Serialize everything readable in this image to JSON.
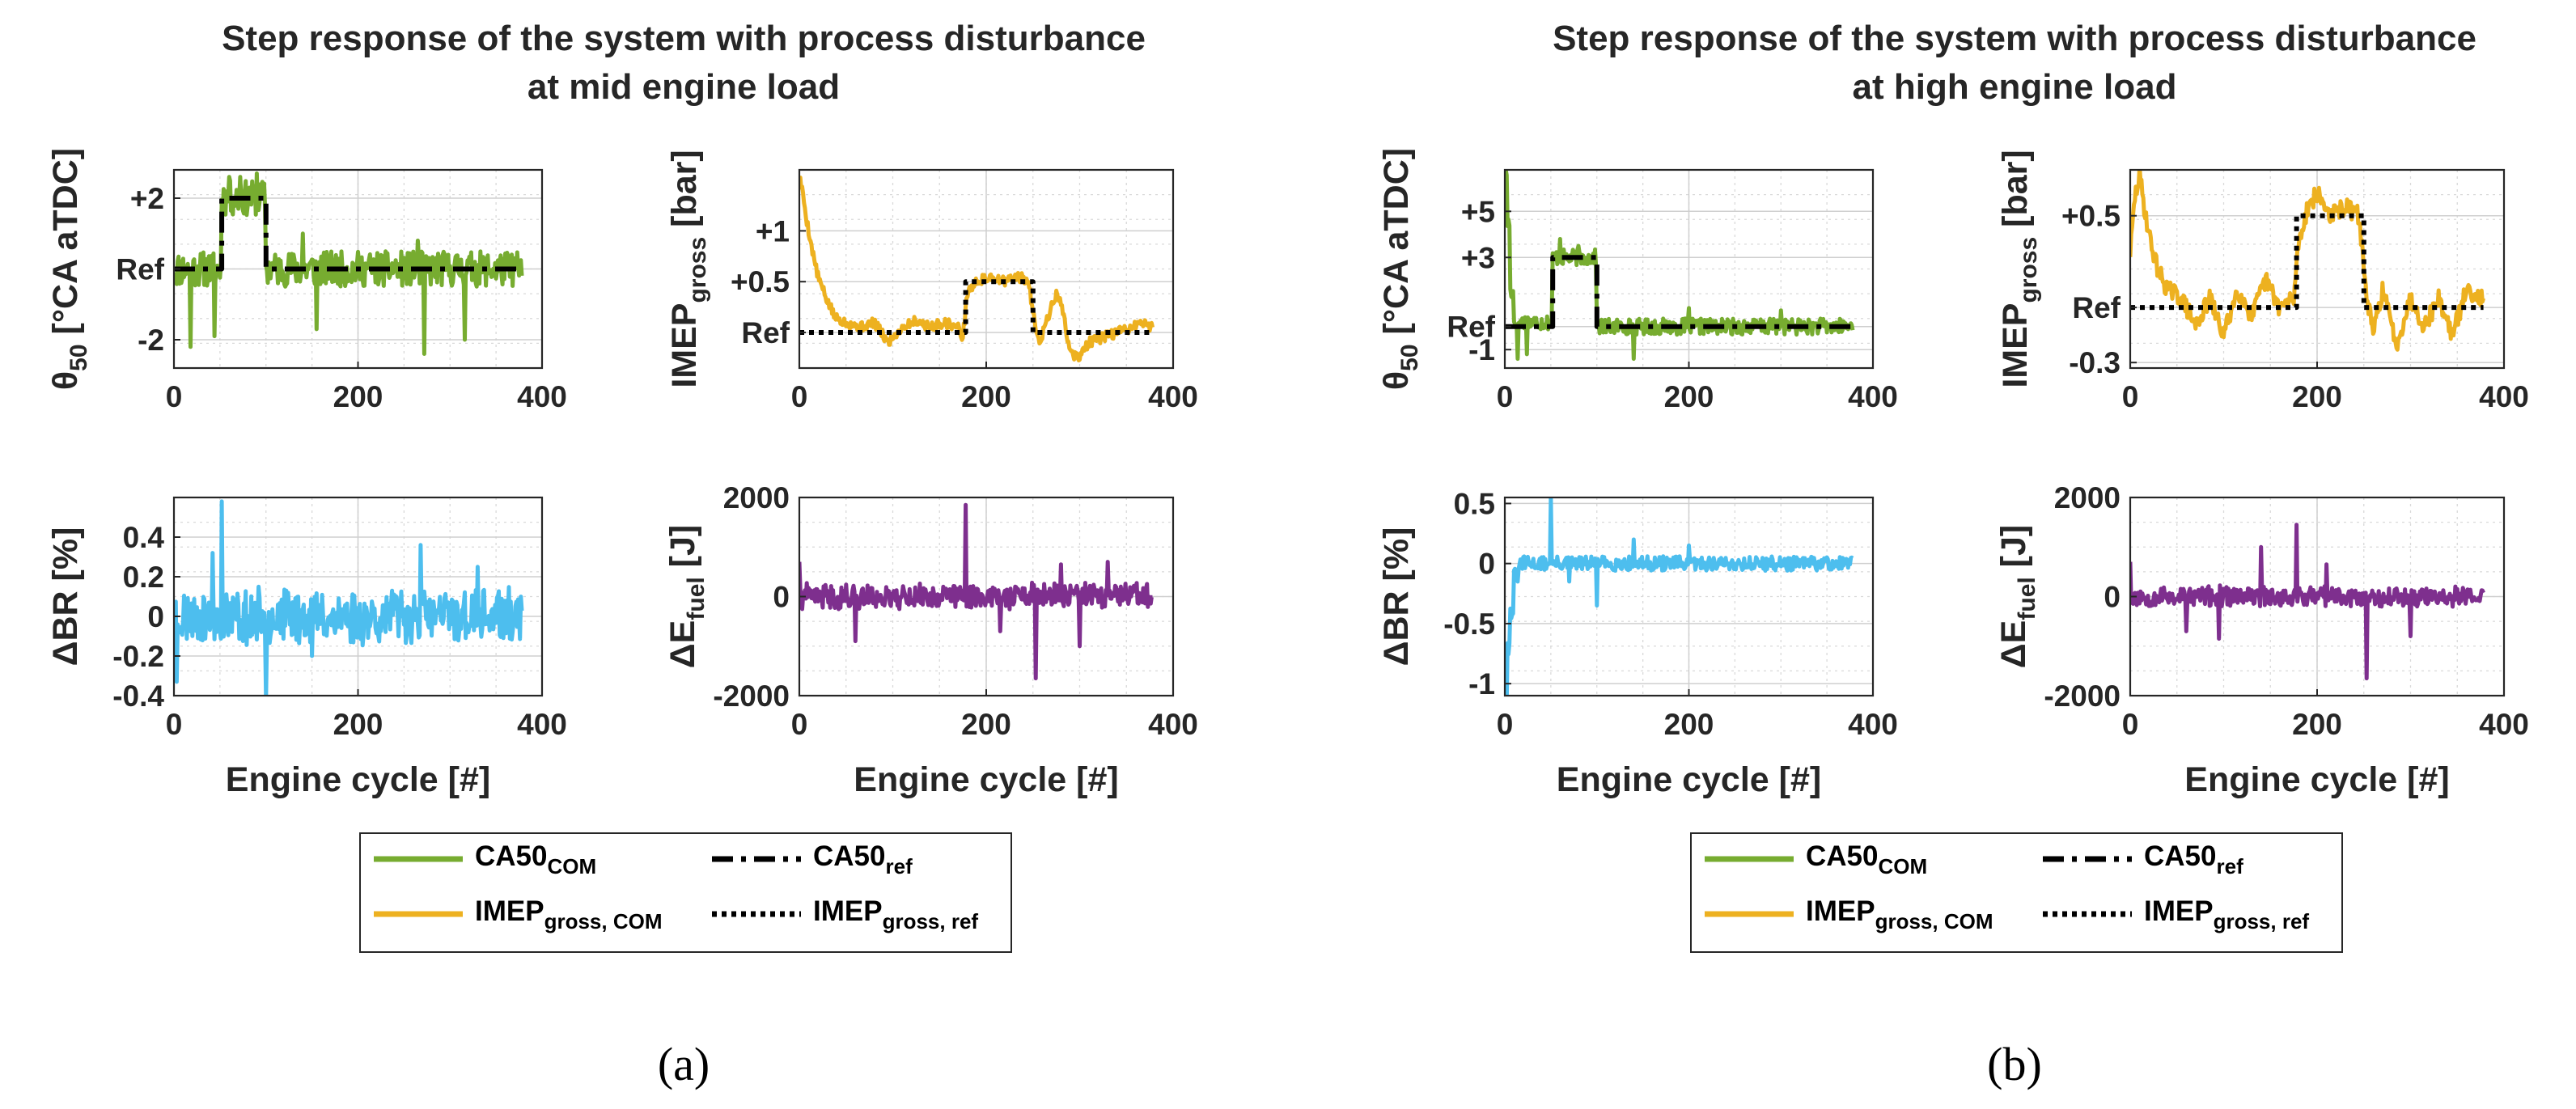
{
  "colors": {
    "ca50_com": "#77AC30",
    "imep_com": "#EDB120",
    "delta_br": "#4DBEEE",
    "delta_e_fuel": "#7E2F8E",
    "reference": "#000000",
    "axis_text": "#262626",
    "grid": "#d9d9d9"
  },
  "panels": [
    {
      "id": "a",
      "title_lines": [
        "Step response of the system with process disturbance",
        "at mid engine load"
      ],
      "caption": "(a)",
      "legend": [
        {
          "base": "CA50",
          "sub": "COM",
          "style": "solid",
          "color_key": "ca50_com"
        },
        {
          "base": "CA50",
          "sub": "ref",
          "style": "dashdot",
          "color_key": "reference"
        },
        {
          "base": "IMEP",
          "sub": "gross, COM",
          "style": "solid",
          "color_key": "imep_com"
        },
        {
          "base": "IMEP",
          "sub": "gross, ref",
          "style": "dotted",
          "color_key": "reference"
        }
      ]
    },
    {
      "id": "b",
      "title_lines": [
        "Step response of the system with process disturbance",
        "at high engine load"
      ],
      "caption": "(b)",
      "legend": [
        {
          "base": "CA50",
          "sub": "COM",
          "style": "solid",
          "color_key": "ca50_com"
        },
        {
          "base": "CA50",
          "sub": "ref",
          "style": "dashdot",
          "color_key": "reference"
        },
        {
          "base": "IMEP",
          "sub": "gross, COM",
          "style": "solid",
          "color_key": "imep_com"
        },
        {
          "base": "IMEP",
          "sub": "gross, ref",
          "style": "dotted",
          "color_key": "reference"
        }
      ]
    }
  ],
  "chart_data": [
    {
      "id": "a-ca50",
      "panel": "a",
      "type": "line",
      "ylabel": {
        "base": "θ",
        "sub": "50",
        "rest": " [°CA aTDC]"
      },
      "xlabel": "",
      "xlim": [
        0,
        400
      ],
      "ylim": [
        -2.8,
        2.8
      ],
      "xticks": [
        0,
        200,
        400
      ],
      "xtick_labels": [
        "0",
        "200",
        "400"
      ],
      "yticks": [
        -2,
        0,
        2
      ],
      "ytick_labels": [
        "-2",
        "Ref",
        "+2"
      ],
      "grid": true,
      "series": [
        {
          "name": "CA50_COM",
          "color_key": "ca50_com",
          "style": "solid",
          "kind": "noisy_step",
          "noise_amp": 0.5,
          "seed": 11,
          "n": 378,
          "steps": [
            [
              0,
              0
            ],
            [
              52,
              2
            ],
            [
              100,
              0
            ],
            [
              378,
              0
            ]
          ],
          "spikes": [
            [
              60,
              2.6
            ],
            [
              72,
              2.6
            ],
            [
              90,
              2.7
            ],
            [
              18,
              -2.2
            ],
            [
              44,
              -1.9
            ],
            [
              155,
              -1.7
            ],
            [
              272,
              -2.4
            ],
            [
              316,
              -2.0
            ],
            [
              140,
              1.0
            ],
            [
              265,
              0.8
            ]
          ]
        },
        {
          "name": "CA50_ref",
          "color_key": "reference",
          "style": "dashdot",
          "kind": "steps",
          "steps": [
            [
              0,
              0
            ],
            [
              52,
              0
            ],
            [
              52,
              2
            ],
            [
              100,
              2
            ],
            [
              100,
              0
            ],
            [
              378,
              0
            ]
          ]
        }
      ]
    },
    {
      "id": "a-imep",
      "panel": "a",
      "type": "line",
      "ylabel": {
        "base": "IMEP",
        "sub": "gross",
        "rest": " [bar]"
      },
      "xlabel": "",
      "xlim": [
        0,
        400
      ],
      "ylim": [
        -0.35,
        1.6
      ],
      "xticks": [
        0,
        200,
        400
      ],
      "xtick_labels": [
        "0",
        "200",
        "400"
      ],
      "yticks": [
        0,
        0.5,
        1
      ],
      "ytick_labels": [
        "Ref",
        "+0.5",
        "+1"
      ],
      "grid": true,
      "series": [
        {
          "name": "IMEP_gross_COM",
          "color_key": "imep_com",
          "style": "solid",
          "kind": "points",
          "points": [
            [
              0,
              1.55
            ],
            [
              4,
              1.35
            ],
            [
              8,
              1.1
            ],
            [
              14,
              0.8
            ],
            [
              20,
              0.55
            ],
            [
              28,
              0.35
            ],
            [
              38,
              0.15
            ],
            [
              50,
              0.1
            ],
            [
              65,
              0.05
            ],
            [
              80,
              0.1
            ],
            [
              95,
              -0.1
            ],
            [
              110,
              0.05
            ],
            [
              125,
              0.12
            ],
            [
              140,
              0.05
            ],
            [
              155,
              0.1
            ],
            [
              170,
              0.05
            ],
            [
              175,
              -0.05
            ],
            [
              180,
              0.4
            ],
            [
              190,
              0.5
            ],
            [
              205,
              0.55
            ],
            [
              220,
              0.5
            ],
            [
              235,
              0.55
            ],
            [
              245,
              0.5
            ],
            [
              252,
              0.1
            ],
            [
              258,
              -0.1
            ],
            [
              262,
              0.05
            ],
            [
              268,
              0.2
            ],
            [
              276,
              0.4
            ],
            [
              282,
              0.2
            ],
            [
              290,
              -0.2
            ],
            [
              298,
              -0.25
            ],
            [
              310,
              -0.1
            ],
            [
              325,
              -0.05
            ],
            [
              340,
              0.0
            ],
            [
              355,
              0.05
            ],
            [
              365,
              0.1
            ],
            [
              378,
              0.05
            ]
          ],
          "noise_amp": 0.05,
          "seed": 5
        },
        {
          "name": "IMEP_gross_ref",
          "color_key": "reference",
          "style": "dotted",
          "kind": "steps",
          "steps": [
            [
              0,
              0
            ],
            [
              178,
              0
            ],
            [
              178,
              0.5
            ],
            [
              250,
              0.5
            ],
            [
              250,
              0
            ],
            [
              378,
              0
            ]
          ]
        }
      ]
    },
    {
      "id": "a-br",
      "panel": "a",
      "type": "line",
      "ylabel": {
        "base": "ΔBR [%]",
        "sub": "",
        "rest": ""
      },
      "xlabel": "Engine cycle [#]",
      "xlim": [
        0,
        400
      ],
      "ylim": [
        -0.4,
        0.6
      ],
      "xticks": [
        0,
        200,
        400
      ],
      "xtick_labels": [
        "0",
        "200",
        "400"
      ],
      "yticks": [
        -0.4,
        -0.2,
        0,
        0.2,
        0.4
      ],
      "ytick_labels": [
        "-0.4",
        "-0.2",
        "0",
        "0.2",
        "0.4"
      ],
      "grid": true,
      "series": [
        {
          "name": "delta_BR",
          "color_key": "delta_br",
          "style": "solid",
          "kind": "noise",
          "center": 0.0,
          "noise_amp": 0.12,
          "seed": 23,
          "n": 378,
          "spikes": [
            [
              3,
              -0.33
            ],
            [
              42,
              0.32
            ],
            [
              52,
              0.58
            ],
            [
              100,
              -0.41
            ],
            [
              268,
              0.36
            ],
            [
              330,
              0.25
            ],
            [
              150,
              -0.2
            ]
          ]
        }
      ]
    },
    {
      "id": "a-efuel",
      "panel": "a",
      "type": "line",
      "ylabel": {
        "base": "ΔE",
        "sub": "fuel",
        "rest": " [J]"
      },
      "xlabel": "Engine cycle [#]",
      "xlim": [
        0,
        400
      ],
      "ylim": [
        -2000,
        2000
      ],
      "xticks": [
        0,
        200,
        400
      ],
      "xtick_labels": [
        "0",
        "200",
        "400"
      ],
      "yticks": [
        -2000,
        0,
        2000
      ],
      "ytick_labels": [
        "-2000",
        "0",
        "2000"
      ],
      "grid": true,
      "series": [
        {
          "name": "delta_E_fuel",
          "color_key": "delta_e_fuel",
          "style": "solid",
          "kind": "noise",
          "center": 0,
          "noise_amp": 220,
          "seed": 41,
          "n": 378,
          "spikes": [
            [
              0,
              700
            ],
            [
              178,
              1850
            ],
            [
              253,
              -1650
            ],
            [
              215,
              -700
            ],
            [
              60,
              -900
            ],
            [
              300,
              -1000
            ],
            [
              330,
              700
            ],
            [
              280,
              650
            ]
          ]
        }
      ]
    },
    {
      "id": "b-ca50",
      "panel": "b",
      "type": "line",
      "ylabel": {
        "base": "θ",
        "sub": "50",
        "rest": " [°CA aTDC]"
      },
      "xlabel": "",
      "xlim": [
        0,
        400
      ],
      "ylim": [
        -1.8,
        6.8
      ],
      "xticks": [
        0,
        200,
        400
      ],
      "xtick_labels": [
        "0",
        "200",
        "400"
      ],
      "yticks": [
        -1,
        0,
        3,
        5
      ],
      "ytick_labels": [
        "-1",
        "Ref",
        "+3",
        "+5"
      ],
      "grid": true,
      "series": [
        {
          "name": "CA50_COM",
          "color_key": "ca50_com",
          "style": "solid",
          "kind": "noisy_step",
          "noise_amp": 0.35,
          "seed": 17,
          "n": 378,
          "steps": [
            [
              0,
              6.6
            ],
            [
              3,
              4.5
            ],
            [
              6,
              1.5
            ],
            [
              10,
              0.2
            ],
            [
              52,
              3.0
            ],
            [
              100,
              0.0
            ],
            [
              378,
              0.0
            ]
          ],
          "spikes": [
            [
              14,
              -1.4
            ],
            [
              24,
              -1.2
            ],
            [
              60,
              3.8
            ],
            [
              80,
              3.5
            ],
            [
              140,
              -1.4
            ],
            [
              200,
              0.8
            ],
            [
              300,
              0.7
            ]
          ]
        },
        {
          "name": "CA50_ref",
          "color_key": "reference",
          "style": "dashdot",
          "kind": "steps",
          "steps": [
            [
              0,
              0
            ],
            [
              52,
              0
            ],
            [
              52,
              3
            ],
            [
              100,
              3
            ],
            [
              100,
              0
            ],
            [
              378,
              0
            ]
          ]
        }
      ]
    },
    {
      "id": "b-imep",
      "panel": "b",
      "type": "line",
      "ylabel": {
        "base": "IMEP",
        "sub": "gross",
        "rest": " [bar]"
      },
      "xlabel": "",
      "xlim": [
        0,
        400
      ],
      "ylim": [
        -0.33,
        0.75
      ],
      "xticks": [
        0,
        200,
        400
      ],
      "xtick_labels": [
        "0",
        "200",
        "400"
      ],
      "yticks": [
        -0.3,
        0,
        0.5
      ],
      "ytick_labels": [
        "-0.3",
        "Ref",
        "+0.5"
      ],
      "grid": true,
      "series": [
        {
          "name": "IMEP_gross_COM",
          "color_key": "imep_com",
          "style": "solid",
          "kind": "points",
          "points": [
            [
              0,
              0.3
            ],
            [
              5,
              0.6
            ],
            [
              10,
              0.72
            ],
            [
              15,
              0.55
            ],
            [
              22,
              0.35
            ],
            [
              30,
              0.2
            ],
            [
              40,
              0.1
            ],
            [
              55,
              0.05
            ],
            [
              70,
              -0.1
            ],
            [
              85,
              0.05
            ],
            [
              100,
              -0.15
            ],
            [
              115,
              0.1
            ],
            [
              130,
              -0.05
            ],
            [
              145,
              0.15
            ],
            [
              160,
              0.0
            ],
            [
              175,
              0.05
            ],
            [
              180,
              0.35
            ],
            [
              190,
              0.55
            ],
            [
              200,
              0.62
            ],
            [
              215,
              0.5
            ],
            [
              230,
              0.55
            ],
            [
              245,
              0.5
            ],
            [
              252,
              0.1
            ],
            [
              260,
              -0.15
            ],
            [
              270,
              0.1
            ],
            [
              285,
              -0.2
            ],
            [
              300,
              0.05
            ],
            [
              315,
              -0.1
            ],
            [
              330,
              0.05
            ],
            [
              345,
              -0.15
            ],
            [
              360,
              0.1
            ],
            [
              378,
              0.05
            ]
          ],
          "noise_amp": 0.05,
          "seed": 29
        },
        {
          "name": "IMEP_gross_ref",
          "color_key": "reference",
          "style": "dotted",
          "kind": "steps",
          "steps": [
            [
              0,
              0
            ],
            [
              178,
              0
            ],
            [
              178,
              0.5
            ],
            [
              250,
              0.5
            ],
            [
              250,
              0
            ],
            [
              378,
              0
            ]
          ]
        }
      ]
    },
    {
      "id": "b-br",
      "panel": "b",
      "type": "line",
      "ylabel": {
        "base": "ΔBR [%]",
        "sub": "",
        "rest": ""
      },
      "xlabel": "Engine cycle [#]",
      "xlim": [
        0,
        400
      ],
      "ylim": [
        -1.1,
        0.55
      ],
      "xticks": [
        0,
        200,
        400
      ],
      "xtick_labels": [
        "0",
        "200",
        "400"
      ],
      "yticks": [
        -1,
        -0.5,
        0,
        0.5
      ],
      "ytick_labels": [
        "-1",
        "-0.5",
        "0",
        "0.5"
      ],
      "grid": true,
      "series": [
        {
          "name": "delta_BR",
          "color_key": "delta_br",
          "style": "solid",
          "kind": "noisy_step",
          "noise_amp": 0.06,
          "seed": 31,
          "n": 378,
          "steps": [
            [
              0,
              -1.1
            ],
            [
              3,
              -0.7
            ],
            [
              6,
              -0.4
            ],
            [
              10,
              -0.1
            ],
            [
              16,
              0.0
            ],
            [
              378,
              0.0
            ]
          ],
          "spikes": [
            [
              50,
              0.55
            ],
            [
              100,
              -0.35
            ],
            [
              140,
              0.2
            ],
            [
              200,
              0.15
            ],
            [
              70,
              -0.15
            ]
          ]
        }
      ]
    },
    {
      "id": "b-efuel",
      "panel": "b",
      "type": "line",
      "ylabel": {
        "base": "ΔE",
        "sub": "fuel",
        "rest": " [J]"
      },
      "xlabel": "Engine cycle [#]",
      "xlim": [
        0,
        400
      ],
      "ylim": [
        -2000,
        2000
      ],
      "xticks": [
        0,
        200,
        400
      ],
      "xtick_labels": [
        "0",
        "200",
        "400"
      ],
      "yticks": [
        -2000,
        0,
        2000
      ],
      "ytick_labels": [
        "-2000",
        "0",
        "2000"
      ],
      "grid": true,
      "series": [
        {
          "name": "delta_E_fuel",
          "color_key": "delta_e_fuel",
          "style": "solid",
          "kind": "noise",
          "center": 0,
          "noise_amp": 180,
          "seed": 53,
          "n": 378,
          "spikes": [
            [
              0,
              700
            ],
            [
              178,
              1450
            ],
            [
              253,
              -1650
            ],
            [
              140,
              1000
            ],
            [
              60,
              -700
            ],
            [
              300,
              -800
            ],
            [
              95,
              -850
            ],
            [
              210,
              650
            ]
          ]
        }
      ]
    }
  ]
}
